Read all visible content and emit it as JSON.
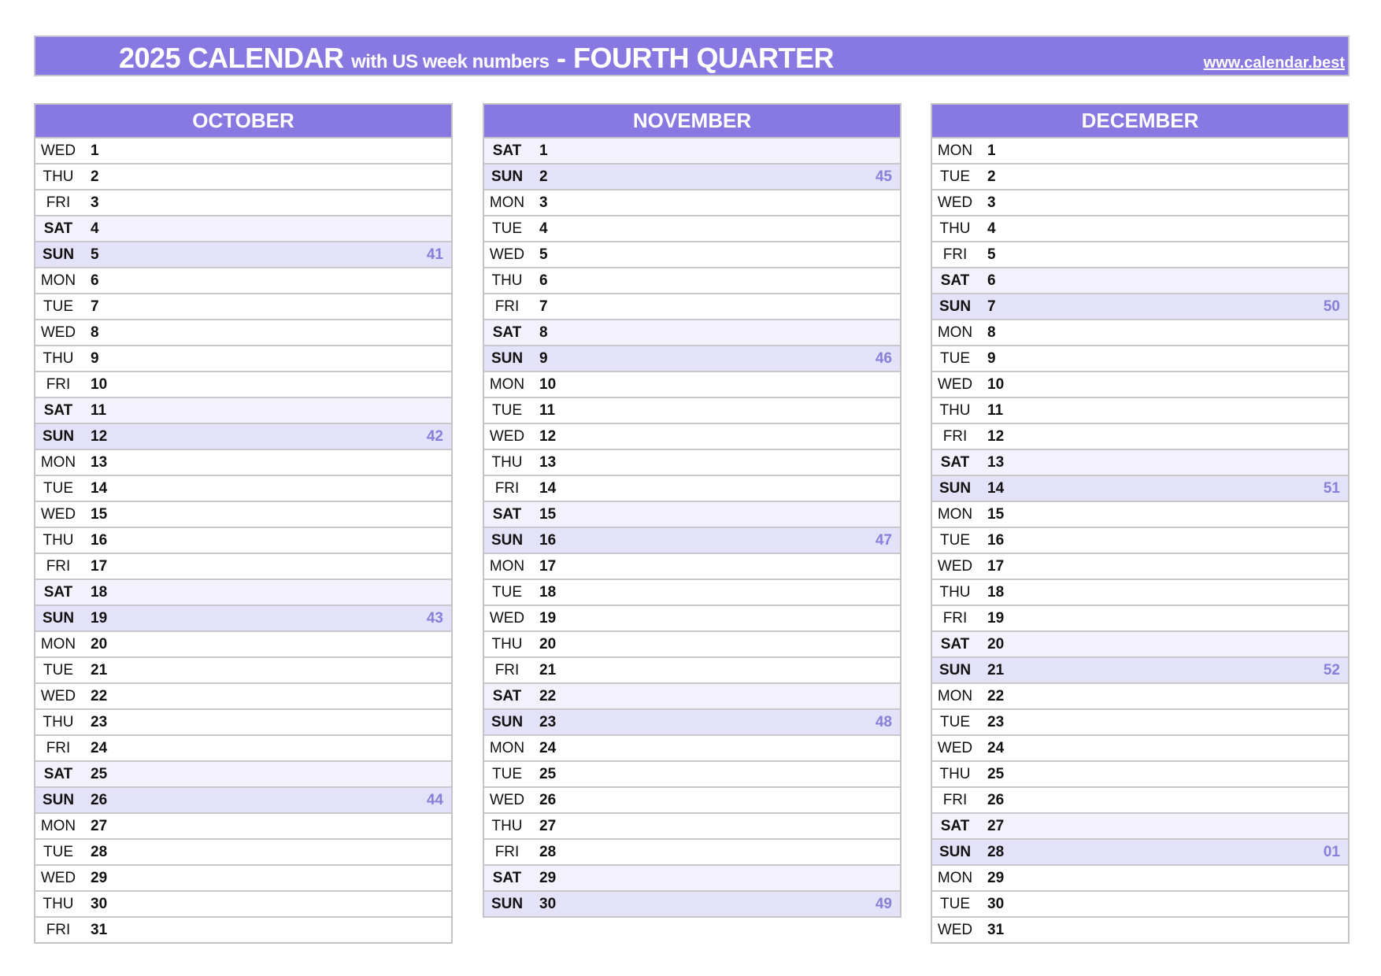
{
  "header": {
    "title_main": "2025 CALENDAR",
    "title_sub": "with US week numbers",
    "title_end": "- FOURTH QUARTER",
    "link": "www.calendar.best"
  },
  "colors": {
    "accent": "#8878e2",
    "saturday_row": "#f3f2fc",
    "sunday_row": "#e4e2f8",
    "week_number": "#8a7fd8"
  },
  "months": [
    {
      "name": "OCTOBER",
      "days": [
        [
          "WED",
          1
        ],
        [
          "THU",
          2
        ],
        [
          "FRI",
          3
        ],
        [
          "SAT",
          4
        ],
        [
          "SUN",
          5,
          "41"
        ],
        [
          "MON",
          6
        ],
        [
          "TUE",
          7
        ],
        [
          "WED",
          8
        ],
        [
          "THU",
          9
        ],
        [
          "FRI",
          10
        ],
        [
          "SAT",
          11
        ],
        [
          "SUN",
          12,
          "42"
        ],
        [
          "MON",
          13
        ],
        [
          "TUE",
          14
        ],
        [
          "WED",
          15
        ],
        [
          "THU",
          16
        ],
        [
          "FRI",
          17
        ],
        [
          "SAT",
          18
        ],
        [
          "SUN",
          19,
          "43"
        ],
        [
          "MON",
          20
        ],
        [
          "TUE",
          21
        ],
        [
          "WED",
          22
        ],
        [
          "THU",
          23
        ],
        [
          "FRI",
          24
        ],
        [
          "SAT",
          25
        ],
        [
          "SUN",
          26,
          "44"
        ],
        [
          "MON",
          27
        ],
        [
          "TUE",
          28
        ],
        [
          "WED",
          29
        ],
        [
          "THU",
          30
        ],
        [
          "FRI",
          31
        ]
      ]
    },
    {
      "name": "NOVEMBER",
      "days": [
        [
          "SAT",
          1
        ],
        [
          "SUN",
          2,
          "45"
        ],
        [
          "MON",
          3
        ],
        [
          "TUE",
          4
        ],
        [
          "WED",
          5
        ],
        [
          "THU",
          6
        ],
        [
          "FRI",
          7
        ],
        [
          "SAT",
          8
        ],
        [
          "SUN",
          9,
          "46"
        ],
        [
          "MON",
          10
        ],
        [
          "TUE",
          11
        ],
        [
          "WED",
          12
        ],
        [
          "THU",
          13
        ],
        [
          "FRI",
          14
        ],
        [
          "SAT",
          15
        ],
        [
          "SUN",
          16,
          "47"
        ],
        [
          "MON",
          17
        ],
        [
          "TUE",
          18
        ],
        [
          "WED",
          19
        ],
        [
          "THU",
          20
        ],
        [
          "FRI",
          21
        ],
        [
          "SAT",
          22
        ],
        [
          "SUN",
          23,
          "48"
        ],
        [
          "MON",
          24
        ],
        [
          "TUE",
          25
        ],
        [
          "WED",
          26
        ],
        [
          "THU",
          27
        ],
        [
          "FRI",
          28
        ],
        [
          "SAT",
          29
        ],
        [
          "SUN",
          30,
          "49"
        ]
      ]
    },
    {
      "name": "DECEMBER",
      "days": [
        [
          "MON",
          1
        ],
        [
          "TUE",
          2
        ],
        [
          "WED",
          3
        ],
        [
          "THU",
          4
        ],
        [
          "FRI",
          5
        ],
        [
          "SAT",
          6
        ],
        [
          "SUN",
          7,
          "50"
        ],
        [
          "MON",
          8
        ],
        [
          "TUE",
          9
        ],
        [
          "WED",
          10
        ],
        [
          "THU",
          11
        ],
        [
          "FRI",
          12
        ],
        [
          "SAT",
          13
        ],
        [
          "SUN",
          14,
          "51"
        ],
        [
          "MON",
          15
        ],
        [
          "TUE",
          16
        ],
        [
          "WED",
          17
        ],
        [
          "THU",
          18
        ],
        [
          "FRI",
          19
        ],
        [
          "SAT",
          20
        ],
        [
          "SUN",
          21,
          "52"
        ],
        [
          "MON",
          22
        ],
        [
          "TUE",
          23
        ],
        [
          "WED",
          24
        ],
        [
          "THU",
          25
        ],
        [
          "FRI",
          26
        ],
        [
          "SAT",
          27
        ],
        [
          "SUN",
          28,
          "01"
        ],
        [
          "MON",
          29
        ],
        [
          "TUE",
          30
        ],
        [
          "WED",
          31
        ]
      ]
    }
  ]
}
